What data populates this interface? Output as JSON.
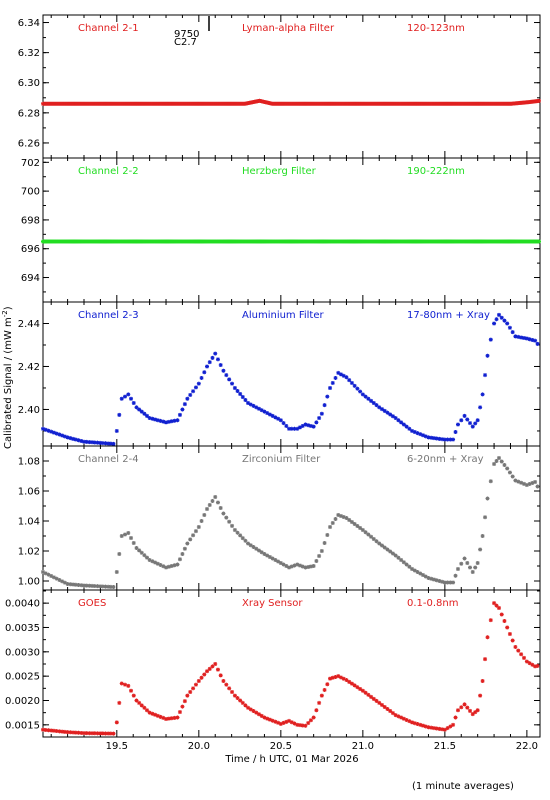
{
  "ylabel": "Calibrated Signal / (mW m",
  "ylabel_sup": "-2",
  "ylabel_end": ")",
  "xlabel": "Time / h UTC, 01 Mar 2026",
  "footnote": "(1 minute averages)",
  "marker_top": "9750",
  "marker_bottom": "C2.7",
  "x_ticks": [
    "19.5",
    "20.0",
    "20.5",
    "21.0",
    "21.5",
    "22.0"
  ],
  "chart_data": [
    {
      "type": "scatter",
      "labels": [
        "Channel 2-1",
        "Lyman-alpha Filter",
        "120-123nm"
      ],
      "color": "#e02020",
      "xlim": [
        19.05,
        22.08
      ],
      "ylim": [
        6.25,
        6.345
      ],
      "y_ticks": [
        "6.26",
        "6.28",
        "6.30",
        "6.32",
        "6.34"
      ],
      "y_tick_values": [
        6.26,
        6.28,
        6.3,
        6.32,
        6.34
      ],
      "points": [
        [
          19.05,
          6.286
        ],
        [
          20.1,
          6.286
        ],
        [
          20.28,
          6.286
        ],
        [
          20.37,
          6.288
        ],
        [
          20.45,
          6.286
        ],
        [
          21.0,
          6.286
        ],
        [
          21.9,
          6.286
        ],
        [
          22.0,
          6.287
        ],
        [
          22.08,
          6.288
        ]
      ]
    },
    {
      "type": "scatter",
      "labels": [
        "Channel 2-2",
        "Herzberg Filter",
        "190-222nm"
      ],
      "color": "#22dd22",
      "xlim": [
        19.05,
        22.08
      ],
      "ylim": [
        692.3,
        702.3
      ],
      "y_ticks": [
        "694",
        "696",
        "698",
        "700",
        "702"
      ],
      "y_tick_values": [
        694,
        696,
        698,
        700,
        702
      ],
      "points": [
        [
          19.05,
          696.5
        ],
        [
          22.08,
          696.5
        ]
      ]
    },
    {
      "type": "scatter",
      "labels": [
        "Channel 2-3",
        "Aluminium Filter",
        "17-80nm + Xray"
      ],
      "color": "#1020d0",
      "xlim": [
        19.05,
        22.08
      ],
      "ylim": [
        2.383,
        2.45
      ],
      "y_ticks": [
        "2.40",
        "2.42",
        "2.44"
      ],
      "y_tick_values": [
        2.4,
        2.42,
        2.44
      ],
      "points": [
        [
          19.05,
          2.391
        ],
        [
          19.2,
          2.387
        ],
        [
          19.3,
          2.385
        ],
        [
          19.48,
          2.384
        ],
        [
          19.5,
          2.39
        ],
        [
          19.53,
          2.405
        ],
        [
          19.57,
          2.407
        ],
        [
          19.62,
          2.401
        ],
        [
          19.7,
          2.396
        ],
        [
          19.8,
          2.394
        ],
        [
          19.87,
          2.395
        ],
        [
          19.93,
          2.405
        ],
        [
          20.0,
          2.412
        ],
        [
          20.05,
          2.42
        ],
        [
          20.1,
          2.426
        ],
        [
          20.15,
          2.418
        ],
        [
          20.22,
          2.41
        ],
        [
          20.3,
          2.403
        ],
        [
          20.4,
          2.399
        ],
        [
          20.5,
          2.395
        ],
        [
          20.55,
          2.391
        ],
        [
          20.6,
          2.391
        ],
        [
          20.65,
          2.393
        ],
        [
          20.7,
          2.392
        ],
        [
          20.75,
          2.398
        ],
        [
          20.8,
          2.41
        ],
        [
          20.85,
          2.417
        ],
        [
          20.9,
          2.415
        ],
        [
          21.0,
          2.407
        ],
        [
          21.1,
          2.401
        ],
        [
          21.2,
          2.396
        ],
        [
          21.3,
          2.39
        ],
        [
          21.4,
          2.387
        ],
        [
          21.5,
          2.386
        ],
        [
          21.55,
          2.386
        ],
        [
          21.58,
          2.393
        ],
        [
          21.62,
          2.397
        ],
        [
          21.67,
          2.392
        ],
        [
          21.7,
          2.395
        ],
        [
          21.73,
          2.407
        ],
        [
          21.76,
          2.425
        ],
        [
          21.8,
          2.44
        ],
        [
          21.83,
          2.444
        ],
        [
          21.88,
          2.44
        ],
        [
          21.93,
          2.434
        ],
        [
          22.0,
          2.433
        ],
        [
          22.05,
          2.432
        ],
        [
          22.08,
          2.429
        ]
      ]
    },
    {
      "type": "scatter",
      "labels": [
        "Channel 2-4",
        "Zirconium Filter",
        "6-20nm + Xray"
      ],
      "color": "#777777",
      "xlim": [
        19.05,
        22.08
      ],
      "ylim": [
        0.994,
        1.09
      ],
      "y_ticks": [
        "1.00",
        "1.02",
        "1.04",
        "1.06",
        "1.08"
      ],
      "y_tick_values": [
        1.0,
        1.02,
        1.04,
        1.06,
        1.08
      ],
      "points": [
        [
          19.05,
          1.006
        ],
        [
          19.2,
          0.998
        ],
        [
          19.3,
          0.997
        ],
        [
          19.48,
          0.996
        ],
        [
          19.5,
          1.006
        ],
        [
          19.53,
          1.03
        ],
        [
          19.57,
          1.032
        ],
        [
          19.62,
          1.022
        ],
        [
          19.7,
          1.014
        ],
        [
          19.8,
          1.009
        ],
        [
          19.87,
          1.011
        ],
        [
          19.93,
          1.025
        ],
        [
          20.0,
          1.036
        ],
        [
          20.05,
          1.048
        ],
        [
          20.1,
          1.056
        ],
        [
          20.15,
          1.045
        ],
        [
          20.22,
          1.034
        ],
        [
          20.3,
          1.025
        ],
        [
          20.4,
          1.018
        ],
        [
          20.5,
          1.012
        ],
        [
          20.55,
          1.009
        ],
        [
          20.6,
          1.011
        ],
        [
          20.65,
          1.009
        ],
        [
          20.7,
          1.01
        ],
        [
          20.75,
          1.02
        ],
        [
          20.8,
          1.036
        ],
        [
          20.85,
          1.044
        ],
        [
          20.9,
          1.042
        ],
        [
          21.0,
          1.034
        ],
        [
          21.1,
          1.025
        ],
        [
          21.2,
          1.017
        ],
        [
          21.3,
          1.008
        ],
        [
          21.4,
          1.002
        ],
        [
          21.5,
          0.999
        ],
        [
          21.55,
          0.999
        ],
        [
          21.58,
          1.008
        ],
        [
          21.62,
          1.015
        ],
        [
          21.67,
          1.006
        ],
        [
          21.7,
          1.012
        ],
        [
          21.73,
          1.03
        ],
        [
          21.76,
          1.055
        ],
        [
          21.8,
          1.078
        ],
        [
          21.83,
          1.082
        ],
        [
          21.88,
          1.075
        ],
        [
          21.93,
          1.067
        ],
        [
          22.0,
          1.064
        ],
        [
          22.05,
          1.066
        ],
        [
          22.08,
          1.06
        ]
      ]
    },
    {
      "type": "scatter",
      "labels": [
        "GOES",
        "Xray Sensor",
        "0.1-0.8nm"
      ],
      "color": "#e02020",
      "xlim": [
        19.05,
        22.08
      ],
      "ylim": [
        0.00125,
        0.00427
      ],
      "y_ticks": [
        "0.0015",
        "0.0020",
        "0.0025",
        "0.0030",
        "0.0035",
        "0.0040"
      ],
      "y_tick_values": [
        0.0015,
        0.002,
        0.0025,
        0.003,
        0.0035,
        0.004
      ],
      "points": [
        [
          19.05,
          0.0014
        ],
        [
          19.2,
          0.00135
        ],
        [
          19.3,
          0.00133
        ],
        [
          19.48,
          0.00132
        ],
        [
          19.5,
          0.00155
        ],
        [
          19.53,
          0.00235
        ],
        [
          19.57,
          0.0023
        ],
        [
          19.62,
          0.002
        ],
        [
          19.7,
          0.00175
        ],
        [
          19.8,
          0.00162
        ],
        [
          19.87,
          0.00165
        ],
        [
          19.93,
          0.0021
        ],
        [
          20.0,
          0.0024
        ],
        [
          20.05,
          0.0026
        ],
        [
          20.1,
          0.00275
        ],
        [
          20.15,
          0.0024
        ],
        [
          20.22,
          0.0021
        ],
        [
          20.3,
          0.00185
        ],
        [
          20.4,
          0.00165
        ],
        [
          20.5,
          0.00152
        ],
        [
          20.55,
          0.00158
        ],
        [
          20.6,
          0.0015
        ],
        [
          20.65,
          0.00148
        ],
        [
          20.7,
          0.00165
        ],
        [
          20.75,
          0.0021
        ],
        [
          20.8,
          0.00245
        ],
        [
          20.85,
          0.0025
        ],
        [
          20.9,
          0.00242
        ],
        [
          21.0,
          0.0022
        ],
        [
          21.1,
          0.00195
        ],
        [
          21.2,
          0.0017
        ],
        [
          21.3,
          0.00155
        ],
        [
          21.4,
          0.00145
        ],
        [
          21.5,
          0.0014
        ],
        [
          21.55,
          0.0015
        ],
        [
          21.58,
          0.0018
        ],
        [
          21.62,
          0.00192
        ],
        [
          21.67,
          0.00172
        ],
        [
          21.7,
          0.0018
        ],
        [
          21.73,
          0.0024
        ],
        [
          21.76,
          0.0033
        ],
        [
          21.8,
          0.004
        ],
        [
          21.83,
          0.0039
        ],
        [
          21.88,
          0.0035
        ],
        [
          21.93,
          0.0031
        ],
        [
          22.0,
          0.0028
        ],
        [
          22.05,
          0.0027
        ],
        [
          22.08,
          0.00272
        ]
      ]
    }
  ]
}
